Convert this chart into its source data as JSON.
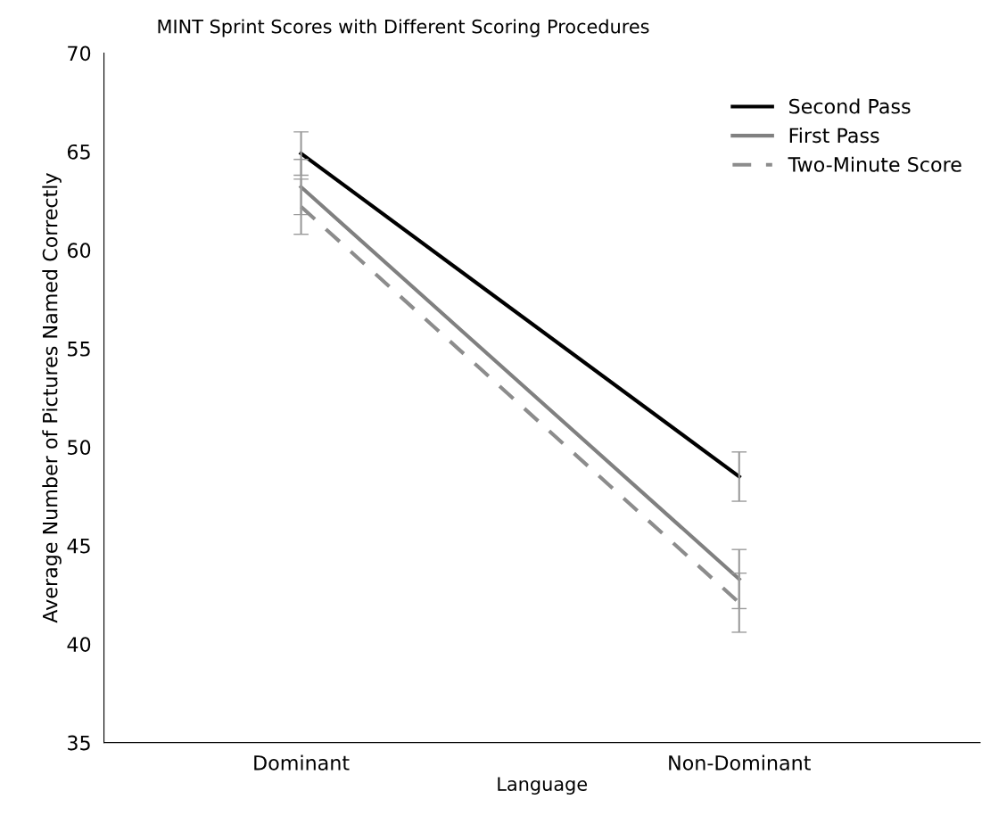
{
  "chart_data": {
    "type": "line",
    "title": "MINT Sprint Scores with Different Scoring Procedures",
    "xlabel": "Language",
    "ylabel": "Average Number of Pictures Named Correctly",
    "categories": [
      "Dominant",
      "Non-Dominant"
    ],
    "series": [
      {
        "name": "Second Pass",
        "color": "#000000",
        "line_style": "solid",
        "values": [
          64.9,
          48.5
        ],
        "errors": [
          1.1,
          1.25
        ]
      },
      {
        "name": "First Pass",
        "color": "#808080",
        "line_style": "solid",
        "values": [
          63.2,
          43.3
        ],
        "errors": [
          1.4,
          1.5
        ]
      },
      {
        "name": "Two-Minute Score",
        "color": "#8c8c8c",
        "line_style": "dashed",
        "values": [
          62.2,
          42.1
        ],
        "errors": [
          1.4,
          1.5
        ]
      }
    ],
    "ylim": [
      35,
      70
    ],
    "yticks": [
      35,
      40,
      45,
      50,
      55,
      60,
      65,
      70
    ],
    "grid": false,
    "legend": "top right",
    "marker": "none"
  }
}
